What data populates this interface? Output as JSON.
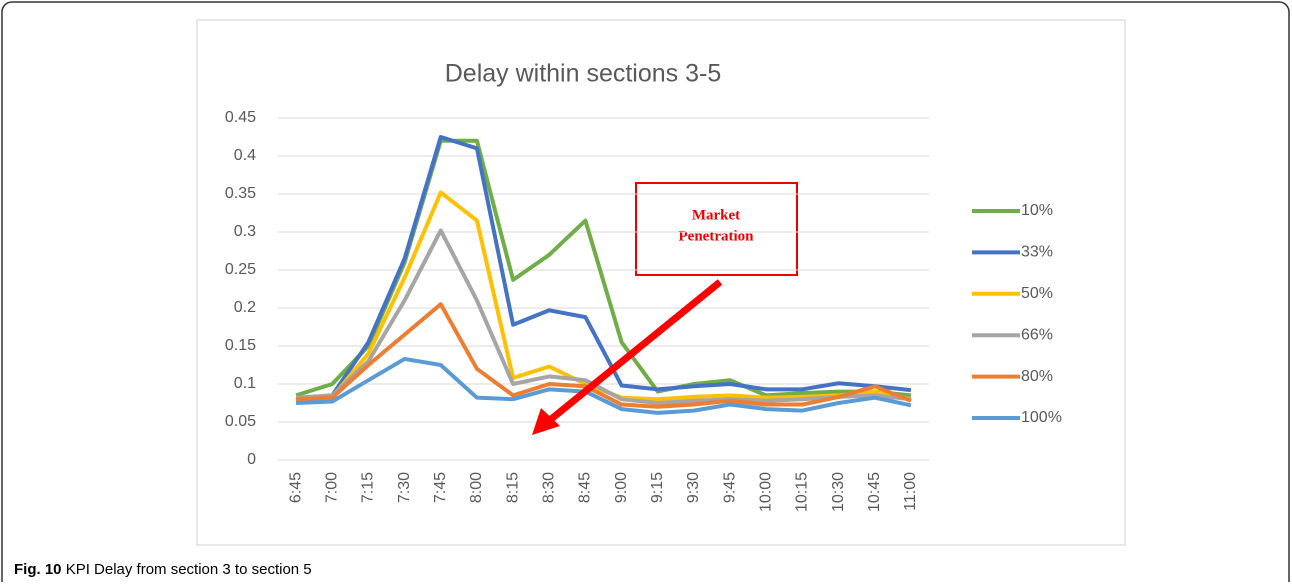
{
  "chart_data": {
    "type": "line",
    "title": "Delay within sections 3-5",
    "categories": [
      "6:45",
      "7:00",
      "7:15",
      "7:30",
      "7:45",
      "8:00",
      "8:15",
      "8:30",
      "8:45",
      "9:00",
      "9:15",
      "9:30",
      "9:45",
      "10:00",
      "10:15",
      "10:30",
      "10:45",
      "11:00"
    ],
    "series": [
      {
        "name": "10%",
        "color": "#70ad47",
        "values": [
          0.085,
          0.1,
          0.15,
          0.26,
          0.42,
          0.42,
          0.237,
          0.27,
          0.315,
          0.155,
          0.09,
          0.1,
          0.105,
          0.085,
          0.088,
          0.09,
          0.09,
          0.085
        ]
      },
      {
        "name": "33%",
        "color": "#4472c4",
        "values": [
          0.08,
          0.085,
          0.155,
          0.265,
          0.425,
          0.41,
          0.178,
          0.197,
          0.188,
          0.098,
          0.093,
          0.097,
          0.1,
          0.093,
          0.093,
          0.101,
          0.097,
          0.092
        ]
      },
      {
        "name": "50%",
        "color": "#ffc000",
        "values": [
          0.08,
          0.083,
          0.14,
          0.24,
          0.352,
          0.315,
          0.108,
          0.123,
          0.1,
          0.082,
          0.08,
          0.083,
          0.085,
          0.082,
          0.083,
          0.085,
          0.09,
          0.08
        ]
      },
      {
        "name": "66%",
        "color": "#a5a5a5",
        "values": [
          0.082,
          0.085,
          0.13,
          0.21,
          0.302,
          0.21,
          0.1,
          0.11,
          0.105,
          0.08,
          0.075,
          0.078,
          0.08,
          0.078,
          0.08,
          0.083,
          0.085,
          0.08
        ]
      },
      {
        "name": "80%",
        "color": "#ed7d31",
        "values": [
          0.08,
          0.082,
          0.125,
          0.165,
          0.205,
          0.12,
          0.085,
          0.1,
          0.097,
          0.073,
          0.07,
          0.073,
          0.078,
          0.073,
          0.073,
          0.083,
          0.097,
          0.078
        ]
      },
      {
        "name": "100%",
        "color": "#5b9bd5",
        "values": [
          0.075,
          0.077,
          0.105,
          0.133,
          0.125,
          0.082,
          0.08,
          0.093,
          0.09,
          0.067,
          0.062,
          0.065,
          0.073,
          0.067,
          0.065,
          0.075,
          0.082,
          0.072
        ]
      }
    ],
    "ylim": [
      0,
      0.45
    ],
    "yticks": [
      0,
      0.05,
      0.1,
      0.15,
      0.2,
      0.25,
      0.3,
      0.35,
      0.4,
      0.45
    ],
    "grid": true,
    "legend": "right",
    "annotation": [
      "Market",
      "Penetration"
    ]
  },
  "caption": {
    "label": "Fig. 10",
    "text": "KPI Delay from section 3 to section 5"
  }
}
